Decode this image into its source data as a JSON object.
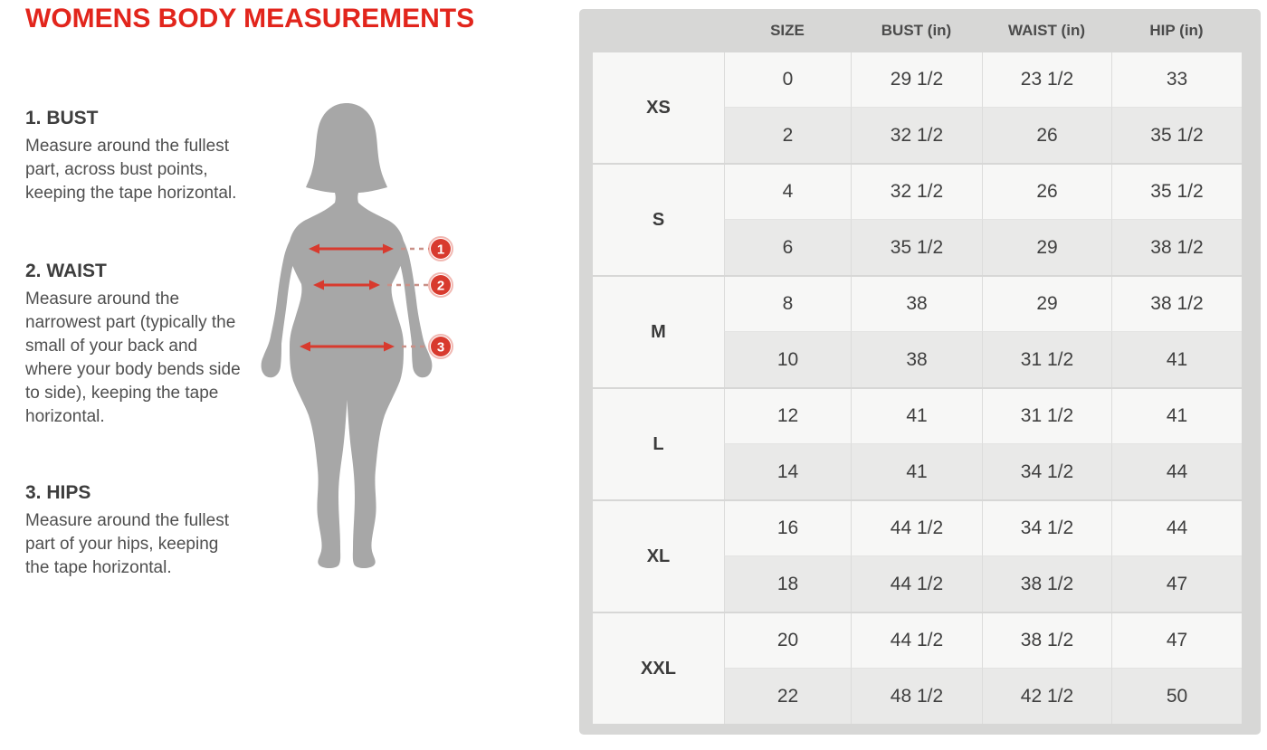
{
  "page": {
    "title": "WOMENS BODY MEASUREMENTS"
  },
  "instructions": [
    {
      "heading": "1. BUST",
      "body": "Measure around the fullest part, across bust points, keeping the tape horizontal."
    },
    {
      "heading": "2. WAIST",
      "body": "Measure around the narrowest part (typically the small of your back and where your body bends side to side), keeping the tape horizontal."
    },
    {
      "heading": "3. HIPS",
      "body": "Measure around the fullest part of your hips, keeping the tape horizontal."
    }
  ],
  "figure": {
    "markers": [
      "1",
      "2",
      "3"
    ]
  },
  "chart_data": {
    "type": "table",
    "title": "WOMENS BODY MEASUREMENTS",
    "columns": [
      "SIZE",
      "BUST (in)",
      "WAIST (in)",
      "HIP (in)"
    ],
    "groups": [
      {
        "label": "XS",
        "rows": [
          [
            "0",
            "29 1/2",
            "23 1/2",
            "33"
          ],
          [
            "2",
            "32 1/2",
            "26",
            "35 1/2"
          ]
        ]
      },
      {
        "label": "S",
        "rows": [
          [
            "4",
            "32 1/2",
            "26",
            "35 1/2"
          ],
          [
            "6",
            "35 1/2",
            "29",
            "38 1/2"
          ]
        ]
      },
      {
        "label": "M",
        "rows": [
          [
            "8",
            "38",
            "29",
            "38 1/2"
          ],
          [
            "10",
            "38",
            "31 1/2",
            "41"
          ]
        ]
      },
      {
        "label": "L",
        "rows": [
          [
            "12",
            "41",
            "31 1/2",
            "41"
          ],
          [
            "14",
            "41",
            "34 1/2",
            "44"
          ]
        ]
      },
      {
        "label": "XL",
        "rows": [
          [
            "16",
            "44 1/2",
            "34 1/2",
            "44"
          ],
          [
            "18",
            "44 1/2",
            "38 1/2",
            "47"
          ]
        ]
      },
      {
        "label": "XXL",
        "rows": [
          [
            "20",
            "44 1/2",
            "38 1/2",
            "47"
          ],
          [
            "22",
            "48 1/2",
            "42 1/2",
            "50"
          ]
        ]
      }
    ]
  },
  "colors": {
    "accent_red": "#e2251c",
    "marker_red": "#d83a2e",
    "silhouette_gray": "#a7a7a7",
    "table_bg": "#d7d7d6",
    "row_light": "#f7f7f6",
    "row_dark": "#e9e9e8",
    "text_dark": "#3f3f3f"
  }
}
